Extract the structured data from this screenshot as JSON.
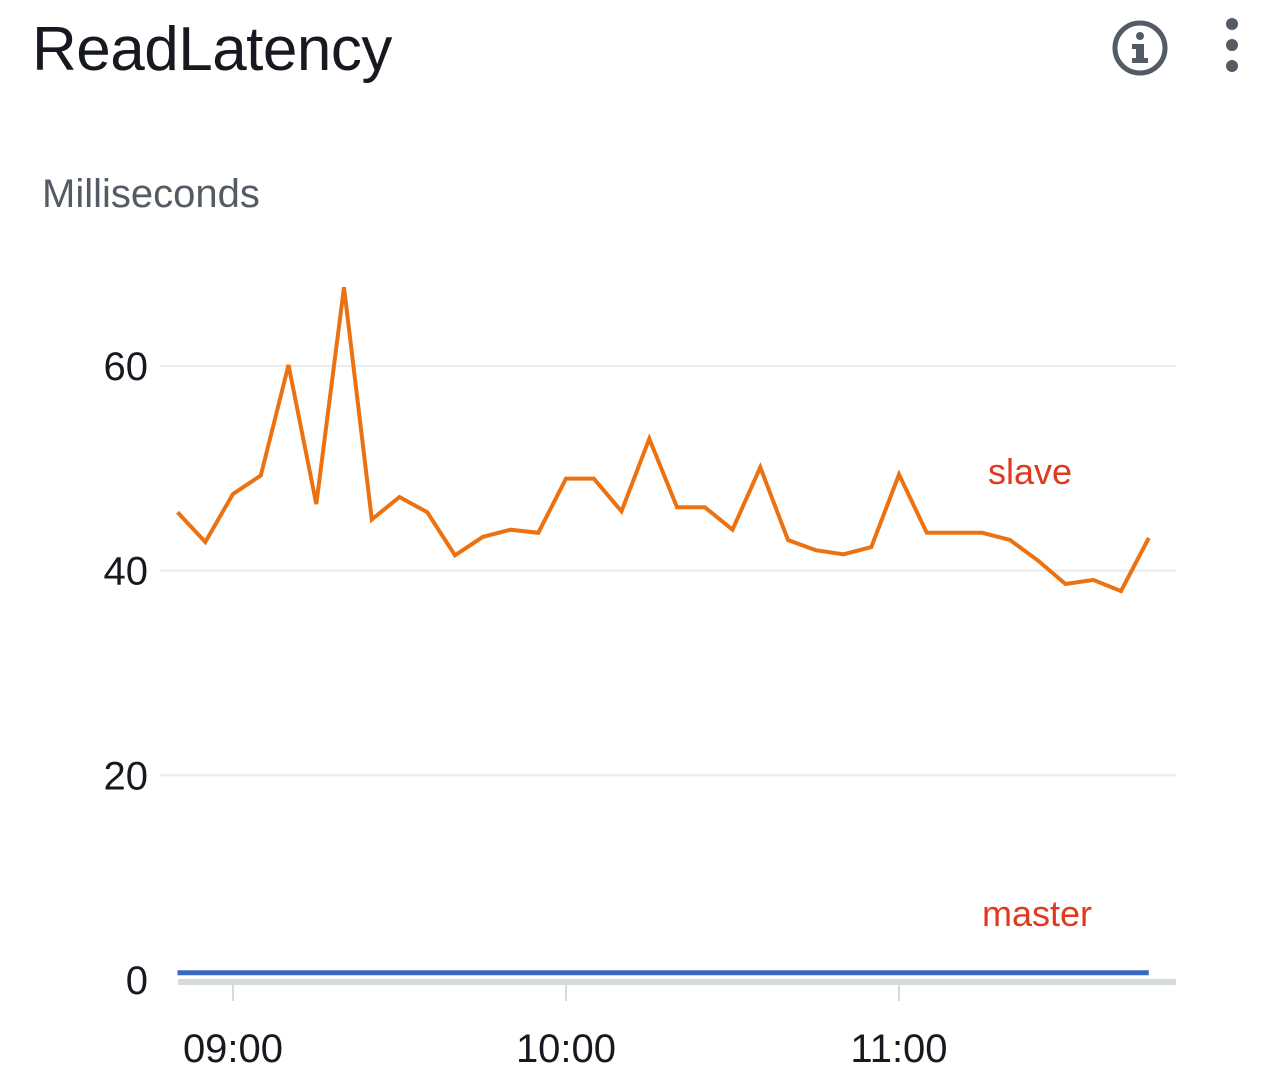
{
  "widget": {
    "title": "ReadLatency",
    "info_icon": "info-circle-icon",
    "menu_icon": "vertical-ellipsis-icon"
  },
  "chart_data": {
    "type": "line",
    "ylabel": "Milliseconds",
    "ylim": [
      0,
      70
    ],
    "yticks": [
      0,
      20,
      40,
      60
    ],
    "xlim": [
      "08:50",
      "11:50"
    ],
    "xticks": [
      "09:00",
      "10:00",
      "11:00"
    ],
    "grid": true,
    "series": [
      {
        "name": "slave",
        "color": "#ec7211",
        "x": [
          "08:50",
          "08:55",
          "09:00",
          "09:05",
          "09:10",
          "09:15",
          "09:20",
          "09:25",
          "09:30",
          "09:35",
          "09:40",
          "09:45",
          "09:50",
          "09:55",
          "10:00",
          "10:05",
          "10:10",
          "10:15",
          "10:20",
          "10:25",
          "10:30",
          "10:35",
          "10:40",
          "10:45",
          "10:50",
          "10:55",
          "11:00",
          "11:05",
          "11:10",
          "11:15",
          "11:20",
          "11:25",
          "11:30",
          "11:35",
          "11:40",
          "11:45"
        ],
        "values": [
          45.7,
          42.8,
          47.5,
          49.3,
          60.1,
          46.5,
          67.7,
          45.0,
          47.2,
          45.7,
          41.5,
          43.3,
          44.0,
          43.7,
          49.0,
          49.0,
          45.8,
          52.9,
          46.2,
          46.2,
          44.0,
          50.1,
          43.0,
          42.0,
          41.6,
          42.3,
          49.4,
          43.7,
          43.7,
          43.7,
          43.0,
          41.0,
          38.7,
          39.1,
          38.0,
          43.2
        ]
      },
      {
        "name": "master",
        "color": "#3968c2",
        "x": [
          "08:50",
          "11:45"
        ],
        "values": [
          0.7,
          0.7
        ]
      }
    ],
    "annotations": [
      {
        "text": "slave",
        "color": "#e0391f"
      },
      {
        "text": "master",
        "color": "#e0391f"
      }
    ]
  }
}
